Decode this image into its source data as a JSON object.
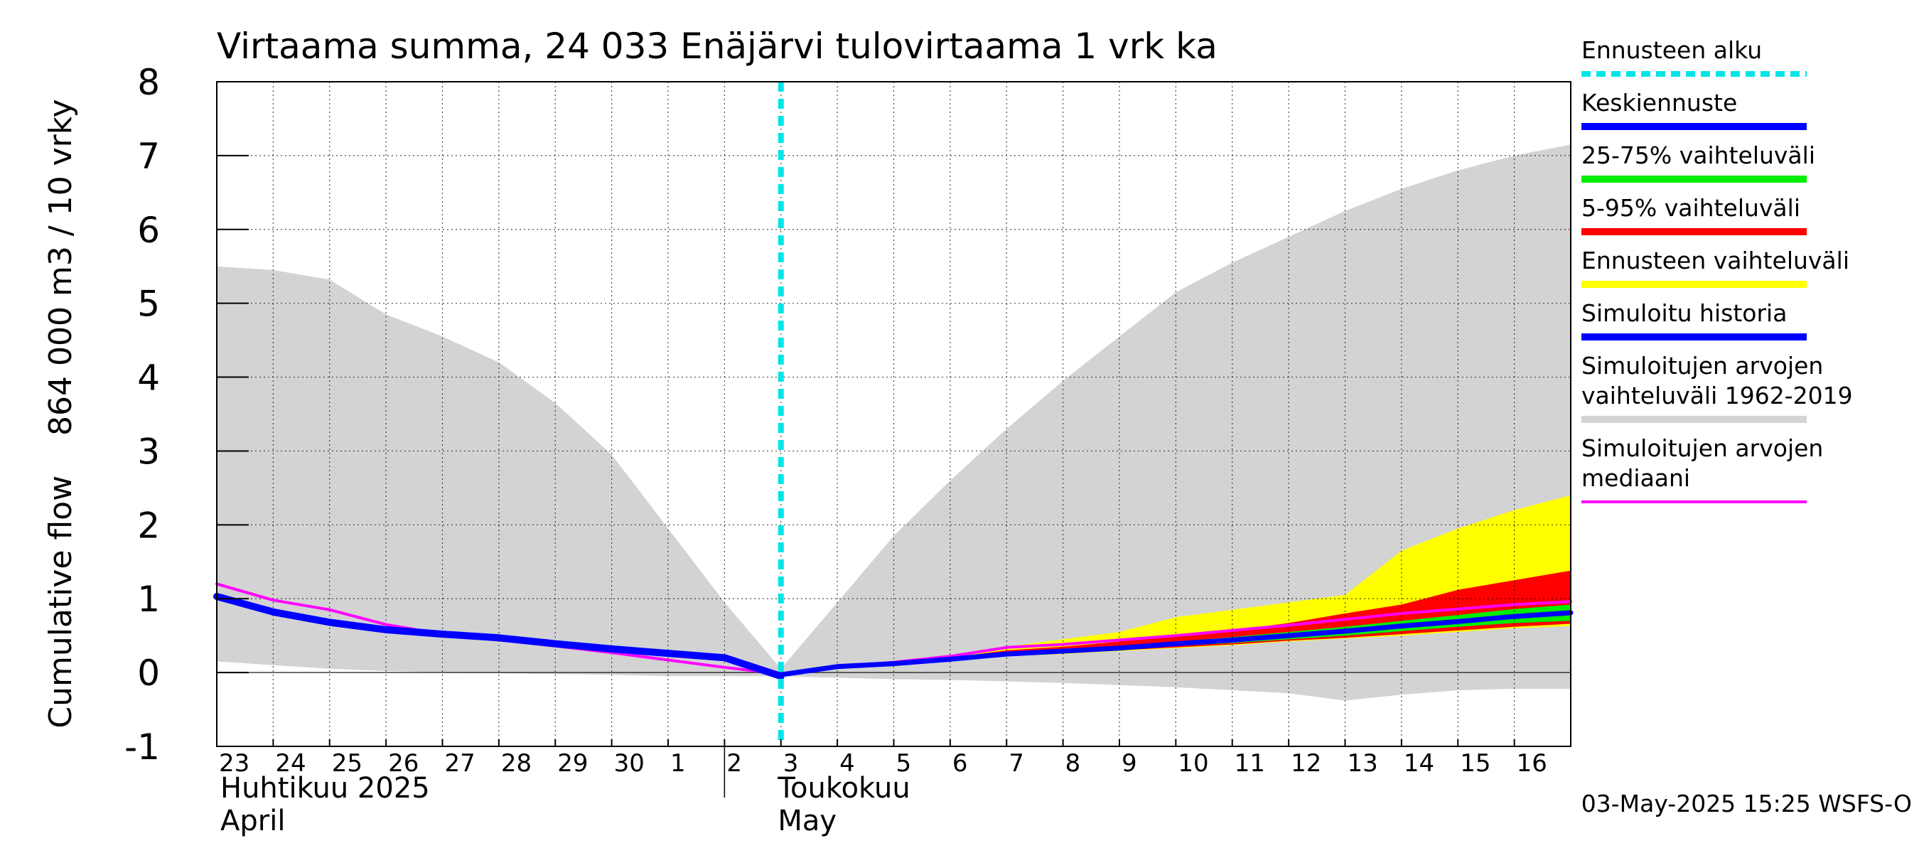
{
  "chart_data": {
    "type": "area",
    "title": "Virtaama summa, 24 033 Enäjärvi tulovirtaama 1 vrk ka",
    "ylabel": "Cumulative flow    864 000 m3 / 10 vrky",
    "ylim": [
      -1,
      8
    ],
    "yticks": [
      "-1",
      "0",
      "1",
      "2",
      "3",
      "4",
      "5",
      "6",
      "7",
      "8"
    ],
    "xlim": [
      0,
      24
    ],
    "day_labels": [
      "23",
      "24",
      "25",
      "26",
      "27",
      "28",
      "29",
      "30",
      "1",
      "2",
      "3",
      "4",
      "5",
      "6",
      "7",
      "8",
      "9",
      "10",
      "11",
      "12",
      "13",
      "14",
      "15",
      "16"
    ],
    "month_labels": [
      {
        "line1": "Huhtikuu  2025",
        "line2": "April",
        "x": 0
      },
      {
        "line1": "Toukokuu",
        "line2": "May",
        "x": 9
      }
    ],
    "forecast_start_x": 10,
    "series": [
      {
        "name": "Simuloitujen arvojen vaihteluväli 1962-2019",
        "kind": "band",
        "color": "#d3d3d3",
        "x": [
          0,
          1,
          2,
          3,
          4,
          5,
          6,
          7,
          8,
          9,
          10,
          11,
          12,
          13,
          14,
          15,
          16,
          17,
          18,
          19,
          20,
          21,
          22,
          23,
          24
        ],
        "upper": [
          5.5,
          5.45,
          5.32,
          4.85,
          4.55,
          4.2,
          3.65,
          2.95,
          1.95,
          0.95,
          0.05,
          0.95,
          1.85,
          2.6,
          3.3,
          3.95,
          4.55,
          5.15,
          5.55,
          5.9,
          6.25,
          6.55,
          6.8,
          7.0,
          7.15
        ],
        "lower": [
          0.15,
          0.1,
          0.05,
          0.02,
          0.0,
          -0.01,
          -0.02,
          -0.03,
          -0.05,
          -0.05,
          -0.05,
          -0.07,
          -0.09,
          -0.1,
          -0.12,
          -0.14,
          -0.17,
          -0.2,
          -0.24,
          -0.28,
          -0.38,
          -0.3,
          -0.24,
          -0.22,
          -0.22
        ]
      },
      {
        "name": "Ennusteen vaihteluväli",
        "kind": "band",
        "color": "#ffff00",
        "x": [
          10,
          11,
          12,
          13,
          14,
          15,
          16,
          17,
          18,
          19,
          20,
          21,
          22,
          23,
          24
        ],
        "upper": [
          0.0,
          0.1,
          0.15,
          0.22,
          0.35,
          0.45,
          0.55,
          0.75,
          0.85,
          0.95,
          1.05,
          1.65,
          1.95,
          2.2,
          2.4
        ],
        "lower": [
          0.0,
          0.07,
          0.11,
          0.15,
          0.22,
          0.25,
          0.29,
          0.33,
          0.37,
          0.42,
          0.46,
          0.5,
          0.55,
          0.6,
          0.63
        ]
      },
      {
        "name": "5-95% vaihteluväli",
        "kind": "band",
        "color": "#ff0000",
        "x": [
          10,
          11,
          12,
          13,
          14,
          15,
          16,
          17,
          18,
          19,
          20,
          21,
          22,
          23,
          24
        ],
        "upper": [
          0.0,
          0.09,
          0.14,
          0.2,
          0.3,
          0.35,
          0.42,
          0.5,
          0.57,
          0.67,
          0.8,
          0.92,
          1.12,
          1.25,
          1.38
        ],
        "lower": [
          0.0,
          0.07,
          0.11,
          0.16,
          0.23,
          0.26,
          0.3,
          0.34,
          0.38,
          0.43,
          0.47,
          0.52,
          0.57,
          0.62,
          0.66
        ]
      },
      {
        "name": "25-75% vaihteluväli",
        "kind": "band",
        "color": "#00ee00",
        "x": [
          10,
          11,
          12,
          13,
          14,
          15,
          16,
          17,
          18,
          19,
          20,
          21,
          22,
          23,
          24
        ],
        "upper": [
          0.0,
          0.085,
          0.13,
          0.19,
          0.27,
          0.31,
          0.36,
          0.42,
          0.48,
          0.55,
          0.62,
          0.7,
          0.78,
          0.86,
          0.92
        ],
        "lower": [
          0.0,
          0.075,
          0.12,
          0.17,
          0.24,
          0.27,
          0.31,
          0.36,
          0.4,
          0.45,
          0.5,
          0.56,
          0.62,
          0.67,
          0.7
        ]
      },
      {
        "name": "Simuloitujen arvojen mediaani",
        "kind": "line",
        "color": "#ff00ff",
        "width": 4,
        "x": [
          0,
          1,
          2,
          3,
          4,
          5,
          6,
          7,
          8,
          9,
          10,
          11,
          12,
          13,
          14,
          15,
          16,
          17,
          18,
          19,
          20,
          21,
          22,
          23,
          24
        ],
        "values": [
          1.2,
          0.98,
          0.85,
          0.65,
          0.52,
          0.44,
          0.36,
          0.27,
          0.17,
          0.07,
          -0.02,
          0.07,
          0.14,
          0.22,
          0.34,
          0.38,
          0.44,
          0.5,
          0.57,
          0.64,
          0.72,
          0.8,
          0.86,
          0.92,
          0.96
        ]
      },
      {
        "name": "Simuloitu historia",
        "kind": "line",
        "color": "#0000ff",
        "width": 10,
        "x": [
          0,
          1,
          2,
          3,
          4,
          5,
          6,
          7,
          8,
          9,
          10
        ],
        "values": [
          1.03,
          0.82,
          0.68,
          0.58,
          0.52,
          0.47,
          0.39,
          0.32,
          0.26,
          0.2,
          -0.05
        ]
      },
      {
        "name": "Keskiennuste",
        "kind": "line",
        "color": "#0000ff",
        "width": 7,
        "x": [
          10,
          11,
          12,
          13,
          14,
          15,
          16,
          17,
          18,
          19,
          20,
          21,
          22,
          23,
          24
        ],
        "values": [
          -0.03,
          0.08,
          0.12,
          0.18,
          0.25,
          0.29,
          0.33,
          0.39,
          0.44,
          0.5,
          0.56,
          0.63,
          0.69,
          0.76,
          0.81
        ]
      }
    ],
    "legend": [
      {
        "label": "Ennusteen alku",
        "color": "#00e5e5",
        "style": "dotted"
      },
      {
        "label": "Keskiennuste",
        "color": "#0000ff",
        "style": "solid"
      },
      {
        "label": "25-75% vaihteluväli",
        "color": "#00ee00",
        "style": "solid"
      },
      {
        "label": "5-95% vaihteluväli",
        "color": "#ff0000",
        "style": "solid"
      },
      {
        "label": "Ennusteen vaihteluväli",
        "color": "#ffff00",
        "style": "solid"
      },
      {
        "label": "Simuloitu historia",
        "color": "#0000ff",
        "style": "solid"
      },
      {
        "label": "Simuloitujen arvojen",
        "label2": "vaihteluväli 1962-2019",
        "color": "#d3d3d3",
        "style": "solid"
      },
      {
        "label": "Simuloitujen arvojen",
        "label2": "mediaani",
        "color": "#ff00ff",
        "style": "thin"
      }
    ],
    "footer": "03-May-2025 15:25 WSFS-O"
  }
}
